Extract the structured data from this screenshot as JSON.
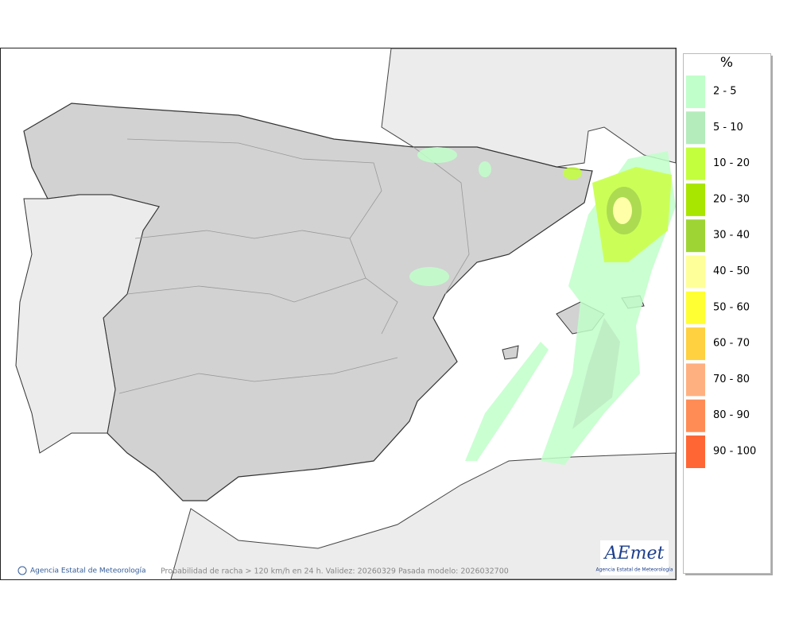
{
  "map": {
    "credit": "Agencia Estatal de Meteorología",
    "caption": "Probabilidad de racha > 120 km/h en 24 h. Validez: 20260329 Pasada modelo: 2026032700",
    "logo": {
      "name": "AEmet",
      "subtitle": "Agencia Estatal de Meteorología"
    }
  },
  "legend": {
    "title": "%",
    "items": [
      {
        "label": "2 - 5",
        "color": "#c1ffca"
      },
      {
        "label": "5 - 10",
        "color": "#b4ecbc"
      },
      {
        "label": "10 - 20",
        "color": "#c3ff3c"
      },
      {
        "label": "20 - 30",
        "color": "#a8e600"
      },
      {
        "label": "30 - 40",
        "color": "#9ed534"
      },
      {
        "label": "40 - 50",
        "color": "#ffff99"
      },
      {
        "label": "50 - 60",
        "color": "#ffff33"
      },
      {
        "label": "60 - 70",
        "color": "#ffd040"
      },
      {
        "label": "70 - 80",
        "color": "#ffb080"
      },
      {
        "label": "80 - 90",
        "color": "#ff8c55"
      },
      {
        "label": "90 - 100",
        "color": "#ff6633"
      }
    ]
  }
}
